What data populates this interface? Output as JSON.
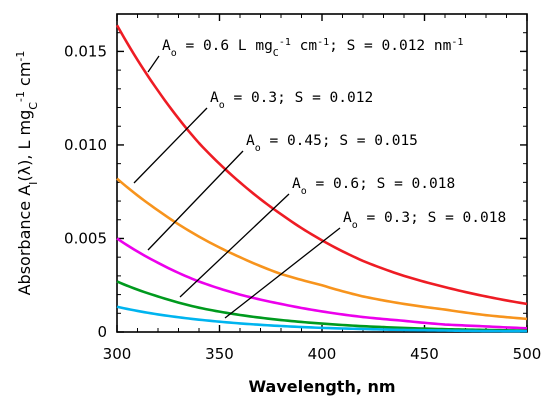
{
  "chart_data": {
    "type": "line",
    "title": "",
    "xlabel": "Wavelength, nm",
    "ylabel": {
      "prefix": "Absorbance A",
      "sub": "I",
      "mid": "(λ), L mg",
      "sub2": "C",
      "sup": "-1",
      "end": " cm",
      "sup2": "-1"
    },
    "xlim": [
      300,
      500
    ],
    "ylim": [
      0,
      0.017
    ],
    "xticks": [
      "300",
      "350",
      "400",
      "450",
      "500"
    ],
    "yticks": [
      "0",
      "0.005",
      "0.010",
      "0.015"
    ],
    "ytick_values": [
      0,
      0.005,
      0.01,
      0.015
    ],
    "xtick_values": [
      300,
      350,
      400,
      450,
      500
    ],
    "grid": false,
    "series": [
      {
        "A0": 0.6,
        "S": 0.012,
        "color": "#ee1c24",
        "x": [
          300,
          320,
          340,
          360,
          380,
          400,
          420,
          440,
          460,
          480,
          500
        ],
        "values": [
          0.0164,
          0.0129,
          0.0101,
          0.008,
          0.0063,
          0.0049,
          0.0038,
          0.003,
          0.0024,
          0.0019,
          0.0015
        ]
      },
      {
        "A0": 0.3,
        "S": 0.012,
        "color": "#f7941d",
        "x": [
          300,
          320,
          340,
          360,
          380,
          400,
          420,
          440,
          460,
          480,
          500
        ],
        "values": [
          0.0082,
          0.0065,
          0.0051,
          0.004,
          0.0031,
          0.0025,
          0.0019,
          0.0015,
          0.0012,
          0.0009,
          0.0007
        ]
      },
      {
        "A0": 0.45,
        "S": 0.015,
        "color": "#ec00ec",
        "x": [
          300,
          320,
          340,
          360,
          380,
          400,
          420,
          440,
          460,
          480,
          500
        ],
        "values": [
          0.005,
          0.0037,
          0.0027,
          0.002,
          0.0015,
          0.0011,
          0.0008,
          0.0006,
          0.0004,
          0.0003,
          0.0002
        ]
      },
      {
        "A0": 0.6,
        "S": 0.018,
        "color": "#009a1e",
        "x": [
          300,
          320,
          340,
          360,
          380,
          400,
          420,
          440,
          460,
          480,
          500
        ],
        "values": [
          0.0027,
          0.0019,
          0.0013,
          0.00091,
          0.00064,
          0.00045,
          0.00031,
          0.00022,
          0.00015,
          0.00011,
          7e-05
        ]
      },
      {
        "A0": 0.3,
        "S": 0.018,
        "color": "#00b4ef",
        "x": [
          300,
          320,
          340,
          360,
          380,
          400,
          420,
          440,
          460,
          480,
          500
        ],
        "values": [
          0.00135,
          0.00094,
          0.00066,
          0.00046,
          0.00032,
          0.00022,
          0.00016,
          0.00011,
          8e-05,
          5e-05,
          4e-05
        ]
      }
    ],
    "annotations": [
      {
        "pre": "A",
        "sub": "o",
        "text": " = 0.6 L mg",
        "sub2": "C",
        "sup": "-1",
        "text2": " cm",
        "sup2": "-1",
        "text3": "; S = 0.012 nm",
        "sup3": "-1"
      },
      {
        "pre": "A",
        "sub": "o",
        "text": " = 0.3; S = 0.012"
      },
      {
        "pre": "A",
        "sub": "o",
        "text": " = 0.45; S = 0.015"
      },
      {
        "pre": "A",
        "sub": "o",
        "text": " = 0.6; S = 0.018"
      },
      {
        "pre": "A",
        "sub": "o",
        "text": " = 0.3; S = 0.018"
      }
    ]
  }
}
